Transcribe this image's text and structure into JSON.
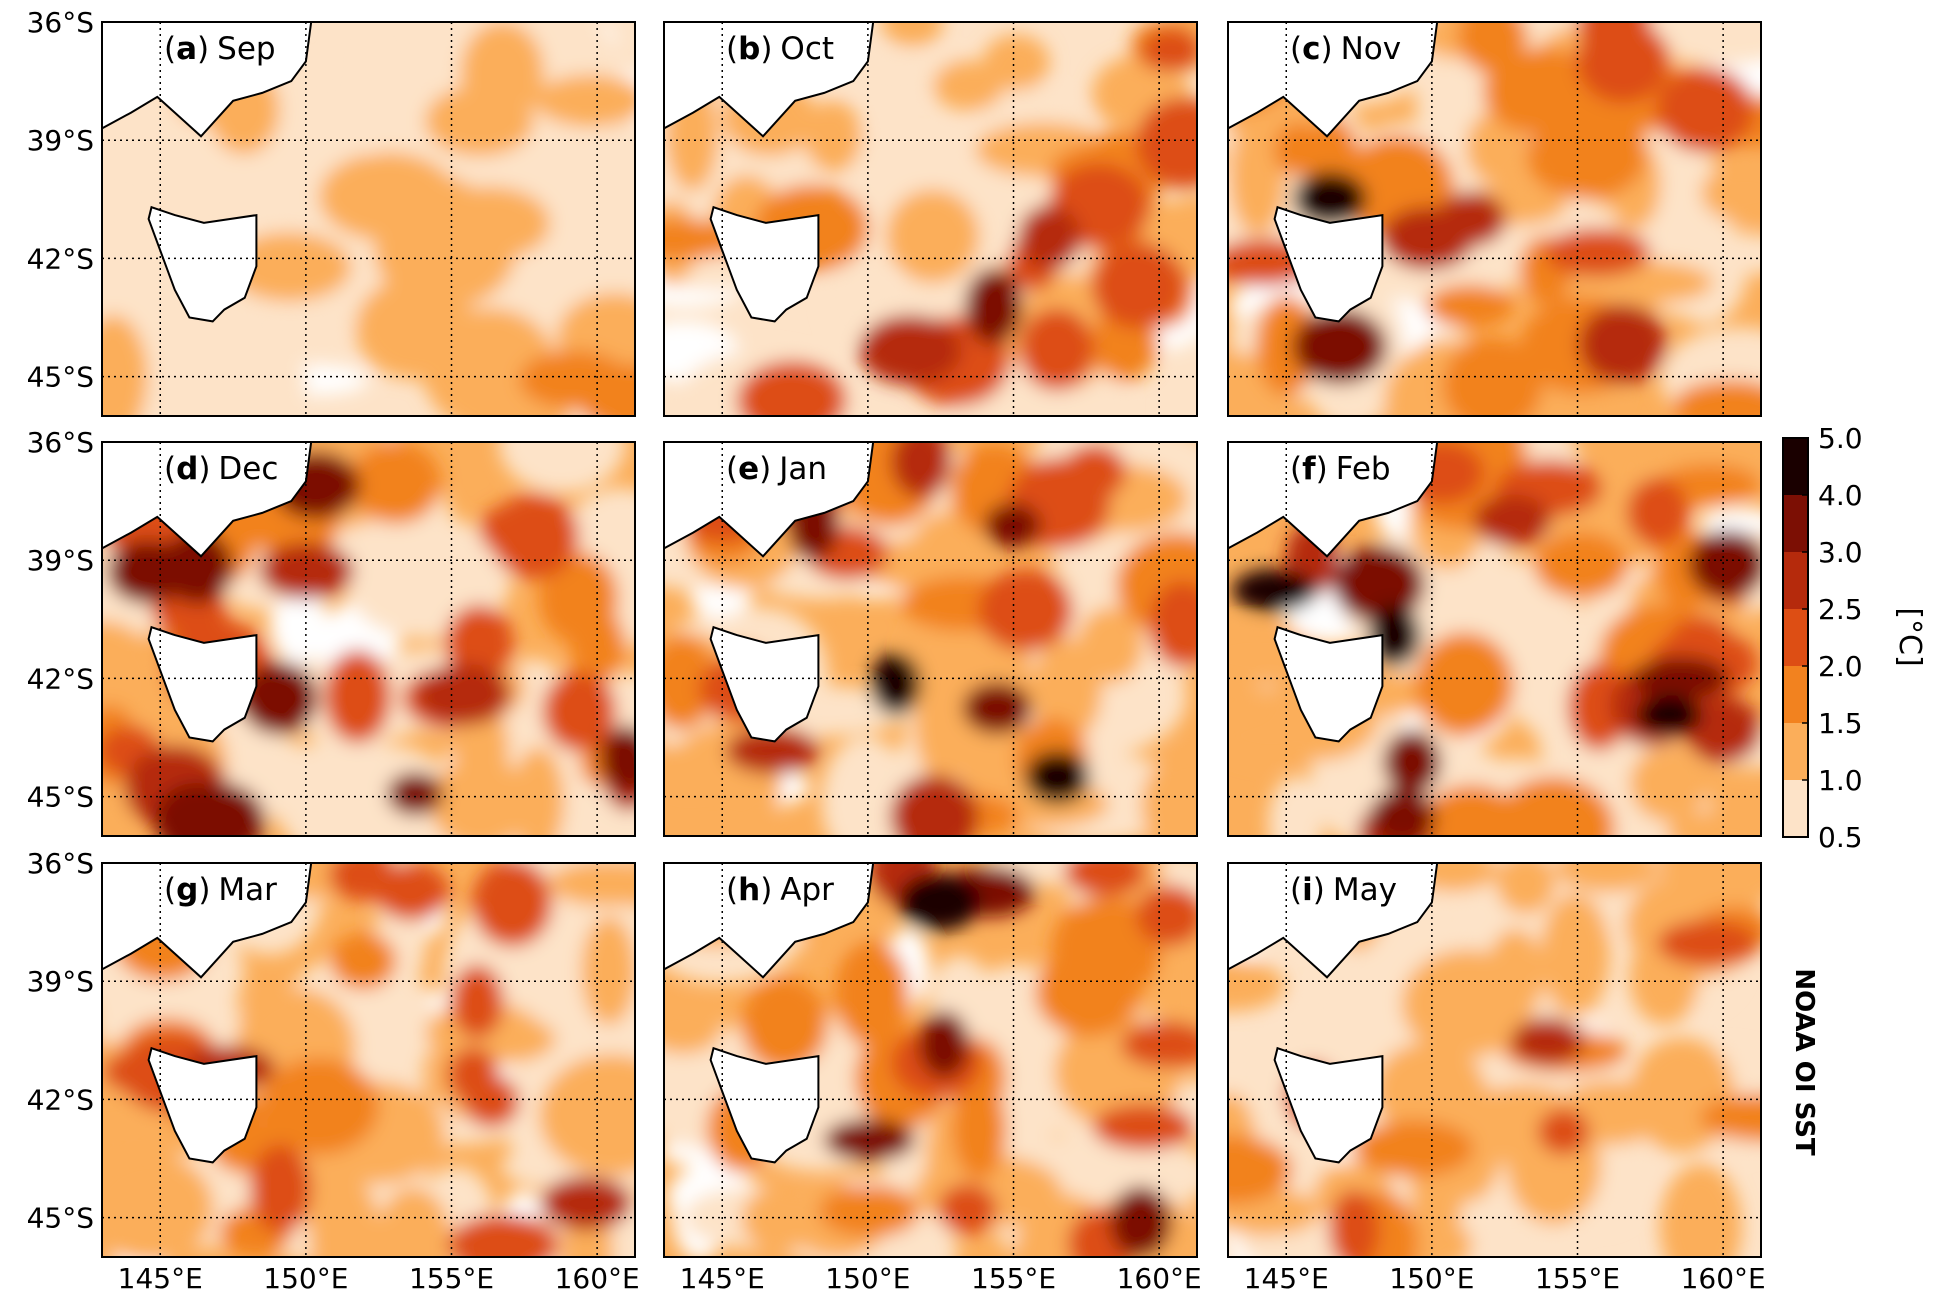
{
  "panels": [
    {
      "label_parts": [
        "(",
        "a",
        ")",
        "Sep"
      ]
    },
    {
      "label_parts": [
        "(",
        "b",
        ")",
        "Oct"
      ]
    },
    {
      "label_parts": [
        "(",
        "c",
        ")",
        "Nov"
      ]
    },
    {
      "label_parts": [
        "(",
        "d",
        ")",
        "Dec"
      ]
    },
    {
      "label_parts": [
        "(",
        "e",
        ")",
        "Jan"
      ]
    },
    {
      "label_parts": [
        "(",
        "f",
        ")",
        "Feb"
      ]
    },
    {
      "label_parts": [
        "(",
        "g",
        ")",
        "Mar"
      ]
    },
    {
      "label_parts": [
        "(",
        "h",
        ")",
        "Apr"
      ]
    },
    {
      "label_parts": [
        "(",
        "i",
        ")",
        "May"
      ]
    }
  ],
  "lat_ticks": [
    "36°S",
    "39°S",
    "42°S",
    "45°S"
  ],
  "lon_ticks": [
    "145°E",
    "150°E",
    "155°E",
    "160°E"
  ],
  "colorbar": {
    "label": "[°C]",
    "ticks": [
      "0.5",
      "1.0",
      "1.5",
      "2.0",
      "2.5",
      "3.0",
      "4.0",
      "5.0"
    ],
    "colors": [
      "#fde3c8",
      "#fbae5a",
      "#f2821f",
      "#dd4e14",
      "#b52a0c",
      "#7c0f04",
      "#1a0000"
    ]
  },
  "side_title": "NOAA OI SST"
}
